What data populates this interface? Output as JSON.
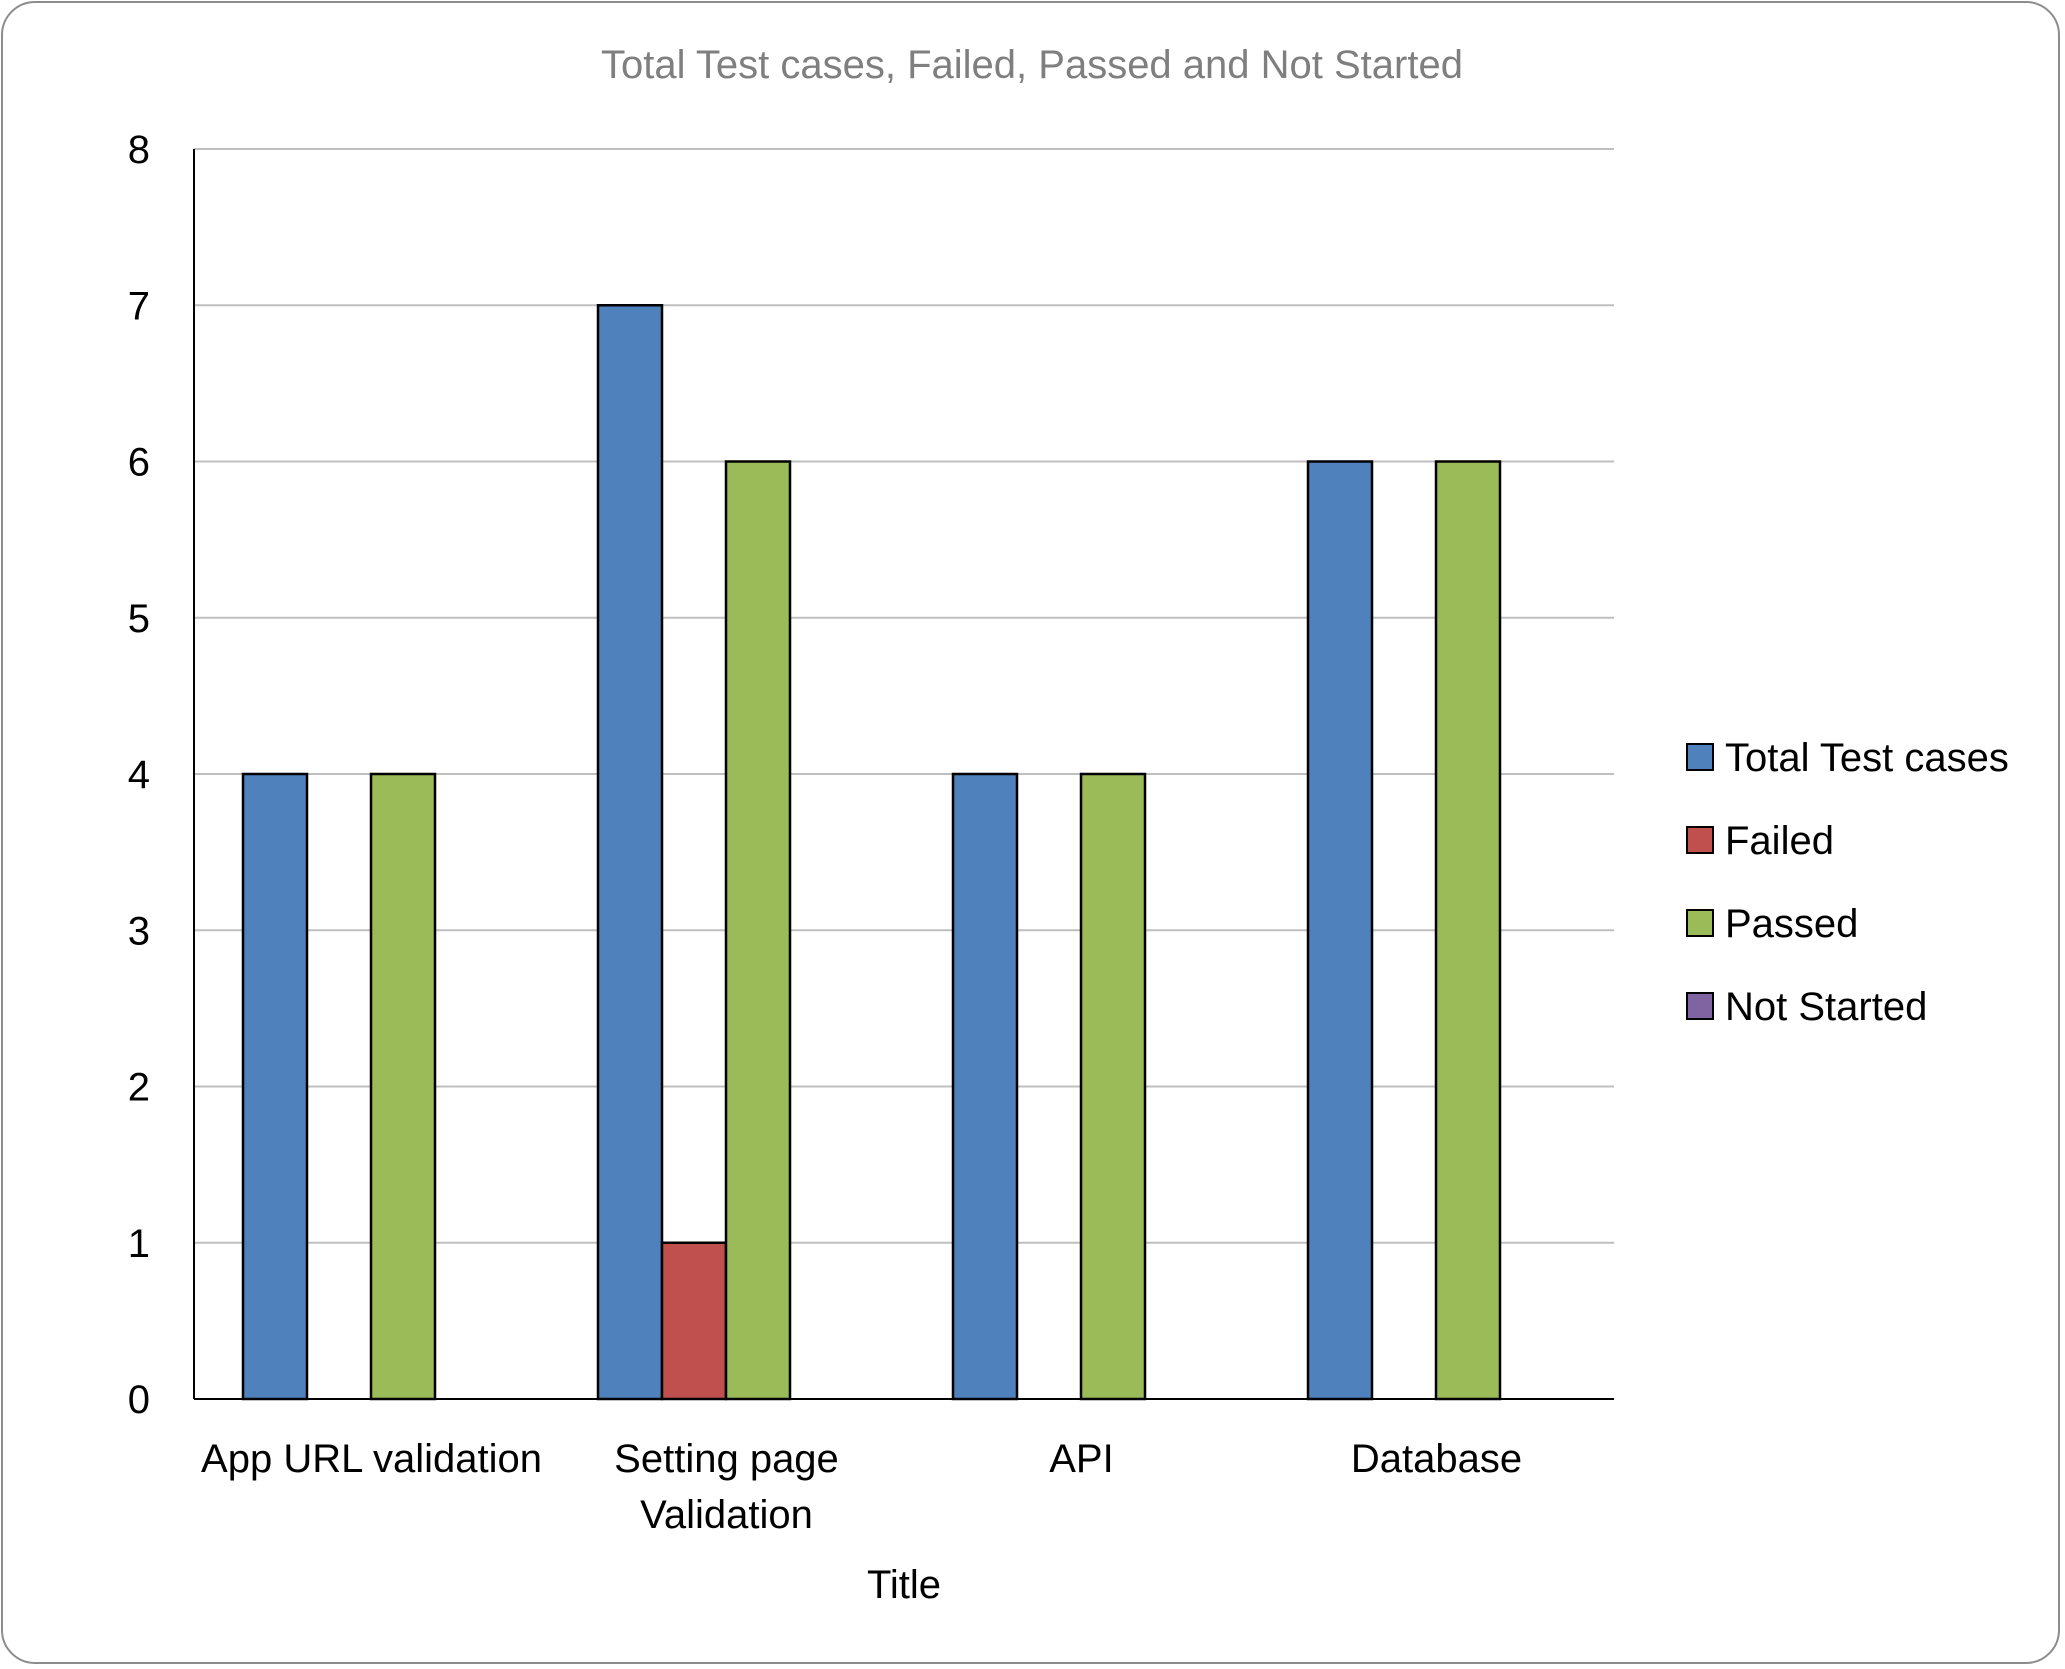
{
  "chart_data": {
    "type": "bar",
    "title": "Total Test cases, Failed, Passed and Not Started",
    "xlabel": "Title",
    "ylabel": "",
    "ylim": [
      0,
      8
    ],
    "yticks": [
      0,
      1,
      2,
      3,
      4,
      5,
      6,
      7,
      8
    ],
    "grid": true,
    "legend_position": "right",
    "categories": [
      [
        "App URL validation"
      ],
      [
        "Setting page",
        "Validation"
      ],
      [
        "API"
      ],
      [
        "Database"
      ]
    ],
    "series": [
      {
        "name": "Total Test cases",
        "color": "#4f81bd",
        "values": [
          4,
          7,
          4,
          6
        ]
      },
      {
        "name": "Failed",
        "color": "#c0504d",
        "values": [
          0,
          1,
          0,
          0
        ]
      },
      {
        "name": "Passed",
        "color": "#9bbb59",
        "values": [
          4,
          6,
          4,
          6
        ]
      },
      {
        "name": "Not Started",
        "color": "#8064a2",
        "values": [
          0,
          0,
          0,
          0
        ]
      }
    ]
  }
}
